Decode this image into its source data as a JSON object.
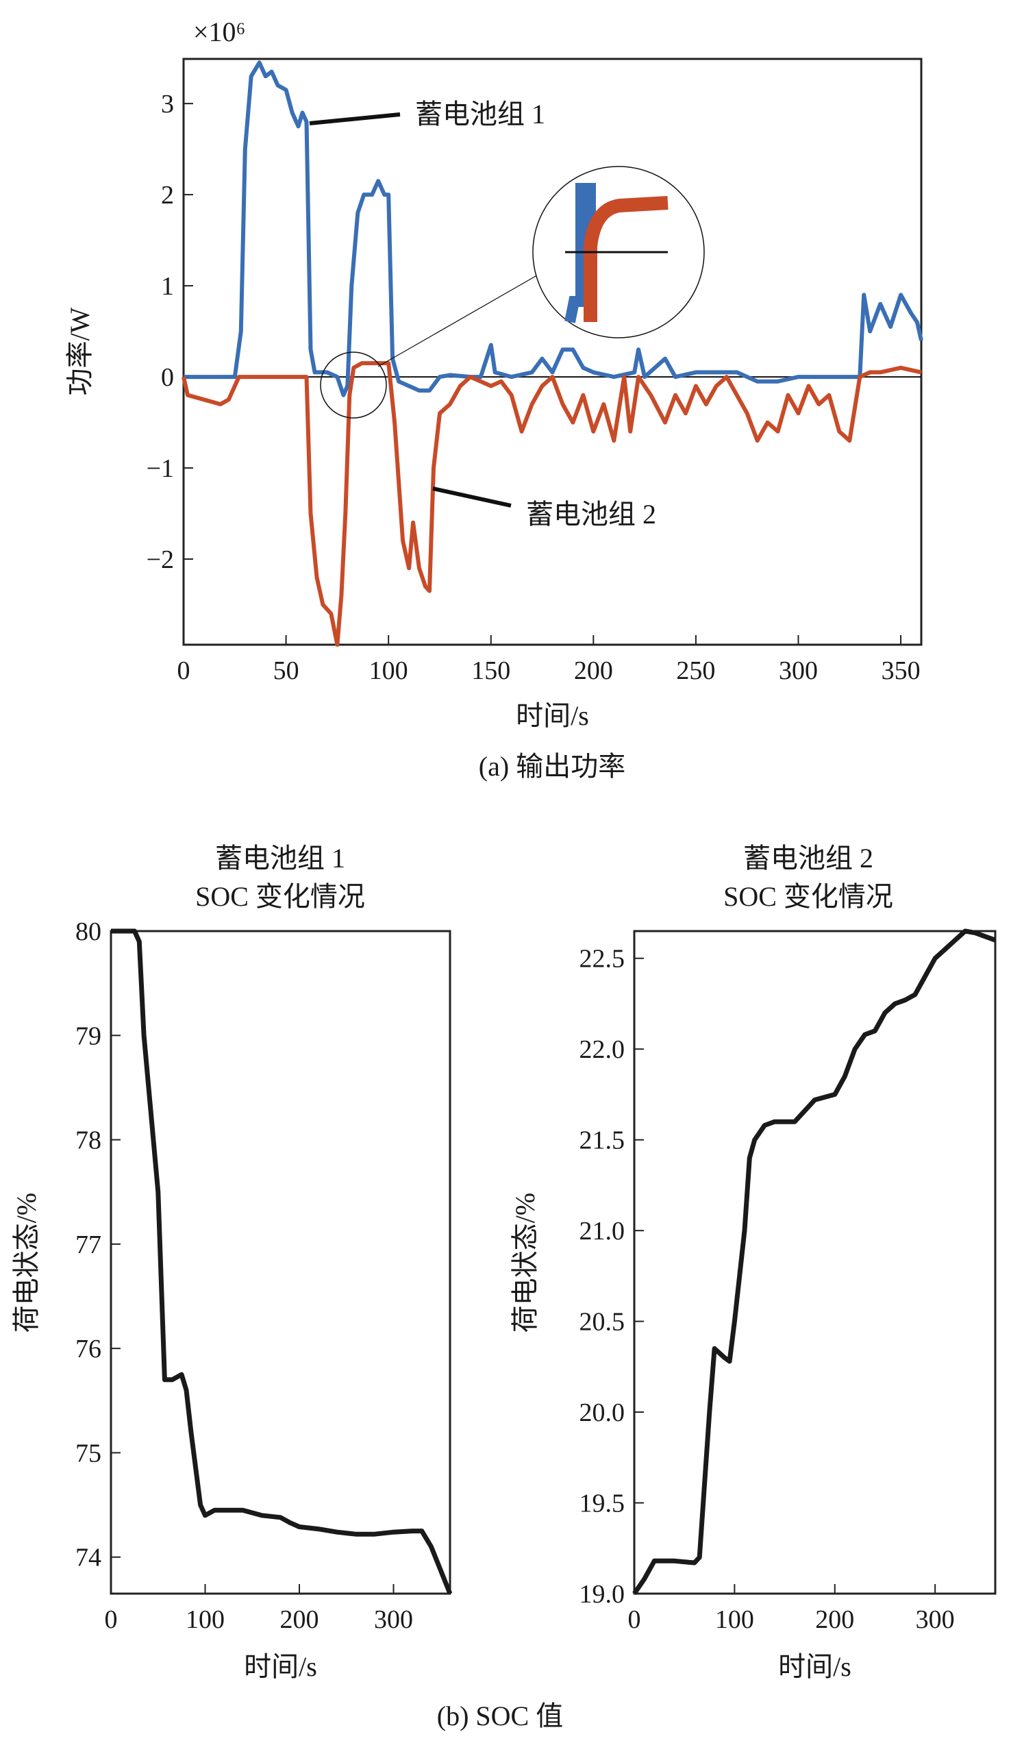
{
  "caption_a": "(a) 输出功率",
  "caption_b": "(b) SOC 值",
  "chart_data": [
    {
      "type": "line",
      "id": "power",
      "scale_label": "×10⁶",
      "xlabel": "时间/s",
      "ylabel": "功率/W",
      "xlim": [
        0,
        360
      ],
      "ylim": [
        -2.94,
        3.49
      ],
      "xticks": [
        0,
        50,
        100,
        150,
        200,
        250,
        300,
        350
      ],
      "yticks": [
        -2,
        -1,
        0,
        1,
        2,
        3
      ],
      "ytick_labels": [
        "−2",
        "−1",
        "0",
        "1",
        "2",
        "3"
      ],
      "grid": false,
      "unit_multiplier": 1000000,
      "colors": {
        "battery1": "#3a6fb5",
        "battery2": "#c84b28"
      },
      "annotations": [
        "蓄电池组 1",
        "蓄电池组 2"
      ],
      "series": [
        {
          "name": "蓄电池组 1",
          "x": [
            0,
            10,
            20,
            25,
            28,
            30,
            33,
            37,
            40,
            43,
            46,
            50,
            53,
            56,
            58,
            60,
            62,
            64,
            70,
            75,
            78,
            80,
            82,
            85,
            88,
            92,
            95,
            98,
            100,
            102,
            105,
            110,
            115,
            120,
            125,
            130,
            140,
            145,
            150,
            152,
            160,
            170,
            175,
            180,
            185,
            190,
            195,
            200,
            210,
            220,
            222,
            225,
            235,
            240,
            250,
            260,
            270,
            280,
            290,
            300,
            310,
            320,
            330,
            332,
            335,
            340,
            345,
            350,
            355,
            358,
            360
          ],
          "y": [
            0,
            0,
            0,
            0,
            0.5,
            2.5,
            3.3,
            3.45,
            3.3,
            3.35,
            3.2,
            3.15,
            2.9,
            2.75,
            2.9,
            2.8,
            0.3,
            0.05,
            0.05,
            0,
            -0.2,
            -0.1,
            1.0,
            1.8,
            2.0,
            2.0,
            2.15,
            2.0,
            2.0,
            0.2,
            -0.05,
            -0.1,
            -0.15,
            -0.15,
            0,
            0.02,
            0,
            0,
            0.35,
            0.05,
            0,
            0.05,
            0.2,
            0.05,
            0.3,
            0.3,
            0.1,
            0.05,
            0,
            0.05,
            0.3,
            0,
            0.2,
            0,
            0.05,
            0.05,
            0.05,
            -0.05,
            -0.05,
            0,
            0,
            0,
            0,
            0.9,
            0.5,
            0.8,
            0.55,
            0.9,
            0.7,
            0.6,
            0.4
          ]
        },
        {
          "name": "蓄电池组 2",
          "x": [
            0,
            2,
            10,
            18,
            22,
            25,
            27,
            60,
            62,
            65,
            68,
            72,
            75,
            77,
            79,
            81,
            83,
            87,
            95,
            100,
            103,
            107,
            110,
            112,
            115,
            118,
            120,
            122,
            125,
            130,
            135,
            140,
            145,
            150,
            155,
            160,
            165,
            170,
            175,
            180,
            185,
            190,
            195,
            200,
            205,
            210,
            215,
            218,
            222,
            228,
            235,
            240,
            245,
            250,
            255,
            260,
            265,
            270,
            275,
            280,
            285,
            290,
            295,
            300,
            305,
            310,
            315,
            320,
            325,
            330,
            335,
            340,
            350,
            360
          ],
          "y": [
            0,
            -0.2,
            -0.25,
            -0.3,
            -0.25,
            -0.1,
            0,
            0,
            -1.5,
            -2.2,
            -2.5,
            -2.6,
            -2.94,
            -2.4,
            -1.5,
            -0.2,
            0.1,
            0.15,
            0.15,
            0.15,
            -0.5,
            -1.8,
            -2.1,
            -1.6,
            -2.1,
            -2.3,
            -2.35,
            -1.0,
            -0.4,
            -0.3,
            -0.1,
            0,
            -0.05,
            -0.1,
            -0.05,
            -0.2,
            -0.6,
            -0.3,
            -0.1,
            0,
            -0.3,
            -0.5,
            -0.2,
            -0.6,
            -0.3,
            -0.7,
            0,
            -0.6,
            0,
            -0.2,
            -0.5,
            -0.2,
            -0.4,
            -0.1,
            -0.3,
            -0.1,
            0,
            -0.2,
            -0.4,
            -0.7,
            -0.5,
            -0.6,
            -0.2,
            -0.4,
            -0.1,
            -0.3,
            -0.2,
            -0.6,
            -0.7,
            0,
            0.05,
            0.05,
            0.1,
            0.05
          ]
        }
      ]
    },
    {
      "type": "line",
      "id": "soc1",
      "title": [
        "蓄电池组 1",
        "SOC 变化情况"
      ],
      "xlabel": "时间/s",
      "ylabel": "荷电状态/%",
      "xlim": [
        0,
        360
      ],
      "ylim": [
        73.65,
        80
      ],
      "xticks": [
        0,
        100,
        200,
        300
      ],
      "yticks": [
        74,
        75,
        76,
        77,
        78,
        79,
        80
      ],
      "ytick_labels": [
        "74",
        "75",
        "76",
        "77",
        "78",
        "79",
        "80"
      ],
      "grid": false,
      "color": "#1a1a1a",
      "series": [
        {
          "x": [
            0,
            25,
            30,
            35,
            40,
            50,
            57,
            65,
            75,
            80,
            85,
            95,
            100,
            110,
            120,
            140,
            160,
            180,
            190,
            200,
            220,
            240,
            260,
            280,
            300,
            320,
            330,
            340,
            360
          ],
          "y": [
            80,
            80,
            79.9,
            79,
            78.5,
            77.5,
            75.7,
            75.7,
            75.75,
            75.6,
            75.2,
            74.5,
            74.4,
            74.45,
            74.45,
            74.45,
            74.4,
            74.38,
            74.33,
            74.29,
            74.27,
            74.24,
            74.22,
            74.22,
            74.24,
            74.25,
            74.25,
            74.1,
            73.65
          ]
        }
      ]
    },
    {
      "type": "line",
      "id": "soc2",
      "title": [
        "蓄电池组 2",
        "SOC 变化情况"
      ],
      "xlabel": "时间/s",
      "ylabel": "荷电状态/%",
      "xlim": [
        0,
        360
      ],
      "ylim": [
        19,
        22.65
      ],
      "xticks": [
        0,
        100,
        200,
        300
      ],
      "yticks": [
        19,
        19.5,
        20,
        20.5,
        21,
        21.5,
        22,
        22.5
      ],
      "ytick_labels": [
        "19.0",
        "19.5",
        "20.0",
        "20.5",
        "21.0",
        "21.5",
        "22.0",
        "22.5"
      ],
      "grid": false,
      "color": "#1a1a1a",
      "series": [
        {
          "x": [
            0,
            10,
            20,
            40,
            60,
            65,
            75,
            80,
            90,
            95,
            100,
            110,
            115,
            120,
            130,
            140,
            160,
            180,
            200,
            210,
            220,
            230,
            240,
            250,
            260,
            270,
            280,
            290,
            300,
            310,
            320,
            330,
            340,
            360
          ],
          "y": [
            19.0,
            19.08,
            19.18,
            19.18,
            19.17,
            19.2,
            20.0,
            20.35,
            20.3,
            20.28,
            20.5,
            21.0,
            21.4,
            21.5,
            21.58,
            21.6,
            21.6,
            21.72,
            21.75,
            21.85,
            22.0,
            22.08,
            22.1,
            22.2,
            22.25,
            22.27,
            22.3,
            22.4,
            22.5,
            22.55,
            22.6,
            22.65,
            22.64,
            22.6
          ]
        }
      ]
    }
  ]
}
